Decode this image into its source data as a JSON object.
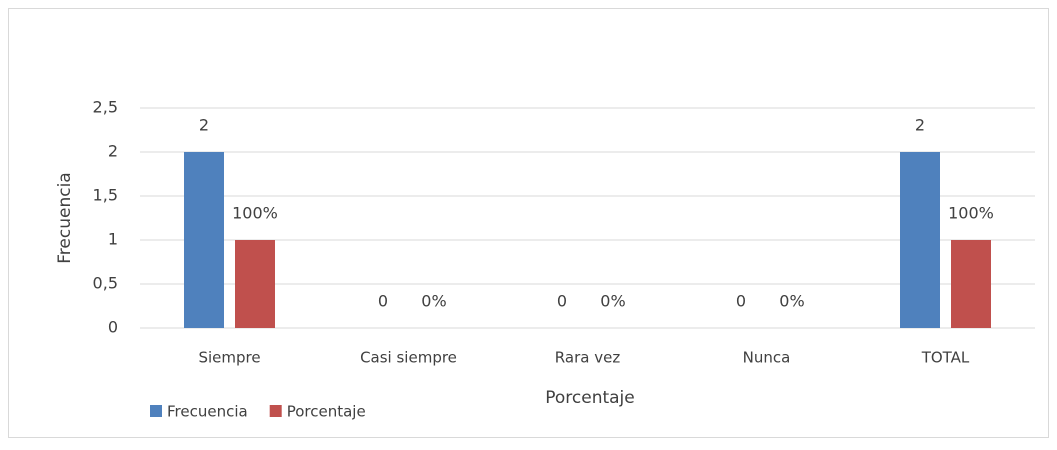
{
  "chart_data": {
    "type": "bar",
    "y_axis_label": "Frecuencia",
    "x_axis_label": "Porcentaje",
    "categories": [
      "Siempre",
      "Casi siempre",
      "Rara vez",
      "Nunca",
      "TOTAL"
    ],
    "series": [
      {
        "name": "Frecuencia",
        "color": "#4f81bd",
        "values": [
          2,
          0,
          0,
          0,
          2
        ]
      },
      {
        "name": "Porcentaje",
        "color": "#c0504d",
        "values": [
          1,
          0,
          0,
          0,
          1
        ],
        "value_labels": [
          "100%",
          "0%",
          "0%",
          "0%",
          "100%"
        ]
      }
    ],
    "ylim": [
      0,
      2.5
    ],
    "yticks": [
      0,
      {
        "value": 0.5,
        "label": "0,5"
      },
      1,
      {
        "value": 1.5,
        "label": "1,5"
      },
      2,
      {
        "value": 2.5,
        "label": "2,5"
      }
    ],
    "grid": true,
    "legend": "bottom-left"
  }
}
